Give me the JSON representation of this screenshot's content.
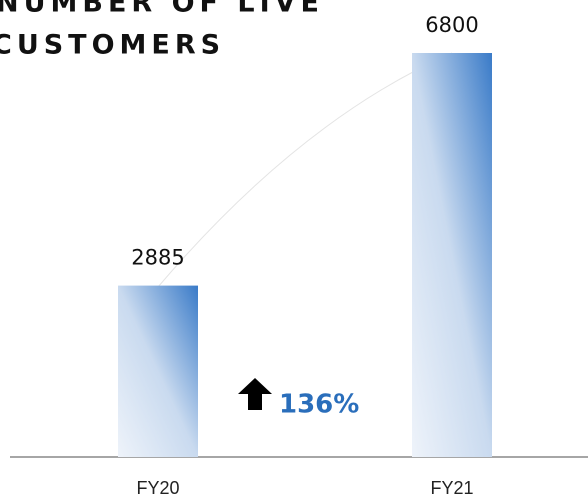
{
  "chart_data": {
    "type": "bar",
    "title": [
      "NUMBER OF LIVE",
      "CUSTOMERS"
    ],
    "categories": [
      "FY20",
      "FY21"
    ],
    "values": [
      2885,
      6800
    ],
    "annotation": "136%",
    "color": "#3a7bc8"
  }
}
